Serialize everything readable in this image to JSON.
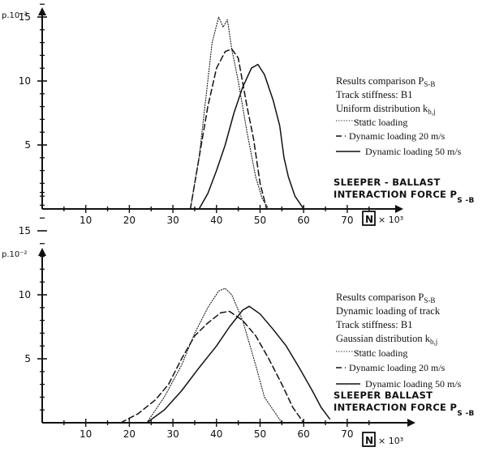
{
  "chart_data": [
    {
      "type": "line",
      "ylabel": "p.10⁻²",
      "xlabel_line1": "SLEEPER - BALLAST",
      "xlabel_line2": "INTERACTION FORCE P",
      "xlabel_sub": "S -B",
      "xunit_box": "N",
      "xunit_mult": "× 10³",
      "xticks": [
        10,
        20,
        30,
        40,
        50,
        60,
        70
      ],
      "yticks": [
        5,
        10,
        15
      ],
      "xlim": [
        0,
        78
      ],
      "ylim": [
        0,
        18
      ],
      "legend": {
        "line1": "Results comparison P",
        "line1_sub": "S-B",
        "line2": "Track stiffness: B1",
        "line3": "Uniform distribution k",
        "line3_sub": "b,j",
        "entries": [
          "Static loading",
          "Dynamic loading 20 m/s",
          "Dynamic loading 50 m/s"
        ]
      },
      "series": [
        {
          "name": "Static loading",
          "style": "dotted",
          "x": [
            34,
            36,
            37.5,
            39,
            40.5,
            41.5,
            42.5,
            43.5,
            45,
            47,
            49,
            50.5,
            52
          ],
          "y": [
            0,
            4,
            8.5,
            13,
            15,
            14.2,
            14.8,
            12.5,
            10,
            6,
            2.5,
            0.8,
            0
          ]
        },
        {
          "name": "Dynamic loading 20 m/s",
          "style": "dashed",
          "x": [
            34,
            36,
            38,
            40,
            42,
            43.5,
            45,
            47,
            48.5,
            50,
            51.5
          ],
          "y": [
            0,
            4,
            8,
            11,
            12.3,
            12.5,
            11.8,
            8,
            5.5,
            2,
            0
          ]
        },
        {
          "name": "Dynamic loading 50 m/s",
          "style": "solid",
          "x": [
            36,
            38,
            40,
            42,
            44,
            46,
            48,
            49.5,
            51,
            53,
            54.5,
            55.5,
            56.5,
            58,
            60
          ],
          "y": [
            0,
            1.2,
            3,
            5,
            7.5,
            9.5,
            11,
            11.3,
            10.5,
            8.5,
            6.5,
            4,
            2.5,
            1,
            0
          ]
        }
      ]
    },
    {
      "type": "line",
      "ylabel": "p.10⁻²",
      "xlabel_line1": "SLEEPER  BALLAST",
      "xlabel_line2": "INTERACTION FORCE P",
      "xlabel_sub": "S -B",
      "xunit_box": "N",
      "xunit_mult": "× 10³",
      "xticks": [
        10,
        20,
        30,
        40,
        50,
        60,
        70
      ],
      "yticks": [
        5,
        10,
        15
      ],
      "xlim": [
        0,
        78
      ],
      "ylim": [
        0,
        18
      ],
      "legend": {
        "line1": "Results comparison P",
        "line1_sub": "S-B",
        "line2": "Dynamic loading of track",
        "line3": "Track stiffness: B1",
        "line4": "Gaussian distribution k",
        "line4_sub": "b,j",
        "entries": [
          "Static loading",
          "Dynamic loading 20 m/s",
          "Dynamic loading 50 m/s"
        ]
      },
      "series": [
        {
          "name": "Static loading",
          "style": "dotted",
          "x": [
            24,
            28,
            32,
            35,
            38,
            40.5,
            42,
            43.5,
            46,
            49,
            51,
            53,
            55
          ],
          "y": [
            0,
            2,
            4.5,
            7,
            9,
            10.3,
            10.5,
            10,
            8,
            4.5,
            2,
            1,
            0
          ]
        },
        {
          "name": "Dynamic loading 20 m/s",
          "style": "dashed",
          "x": [
            18,
            22,
            26,
            29,
            32,
            35,
            38,
            41,
            43,
            46,
            49,
            52,
            55,
            57.5,
            60
          ],
          "y": [
            0,
            0.7,
            1.8,
            3,
            5,
            6.8,
            7.8,
            8.6,
            8.7,
            8,
            6.8,
            5,
            3,
            1.2,
            0
          ]
        },
        {
          "name": "Dynamic loading 50 m/s",
          "style": "solid",
          "x": [
            24,
            28,
            32,
            36,
            40,
            43,
            46,
            47.5,
            50,
            53,
            56,
            59,
            62,
            64,
            66
          ],
          "y": [
            0,
            1,
            2.5,
            4.3,
            6,
            7.5,
            8.8,
            9.1,
            8.5,
            7.3,
            6,
            4.3,
            2.5,
            1.2,
            0.3
          ]
        }
      ]
    }
  ]
}
